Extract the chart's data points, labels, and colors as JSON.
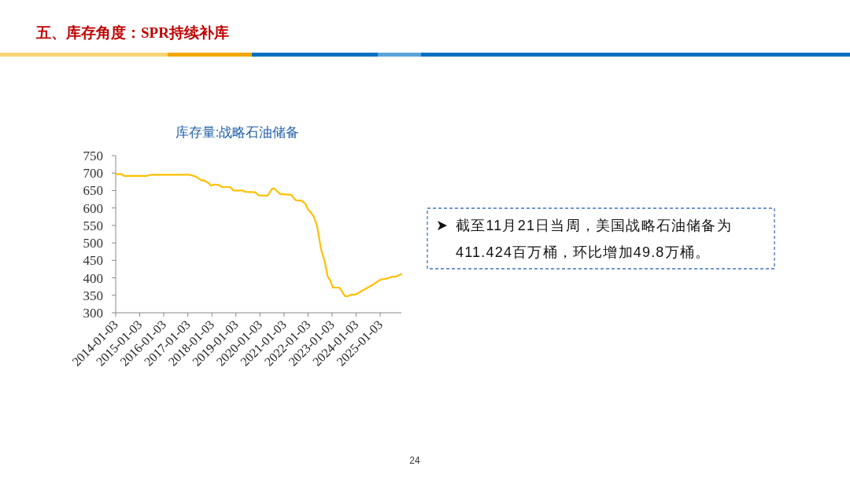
{
  "chart_data": {
    "type": "line",
    "title": "库存量:战略石油储备",
    "x": [
      "2014-01-03",
      "2014-04-01",
      "2014-05-10",
      "2015-04-20",
      "2015-07-01",
      "2017-02-01",
      "2017-05-01",
      "2017-07-20",
      "2017-09-01",
      "2017-11-25",
      "2017-12-15",
      "2018-02-05",
      "2018-04-20",
      "2018-06-05",
      "2018-10-05",
      "2018-12-01",
      "2019-04-20",
      "2019-05-25",
      "2019-10-20",
      "2019-12-15",
      "2020-04-25",
      "2020-07-10",
      "2020-08-05",
      "2020-11-05",
      "2021-04-20",
      "2021-07-01",
      "2021-09-25",
      "2021-11-25",
      "2022-01-01",
      "2022-02-05",
      "2022-04-01",
      "2022-05-20",
      "2022-07-20",
      "2022-09-15",
      "2022-10-28",
      "2022-12-05",
      "2023-01-15",
      "2023-04-25",
      "2023-07-15",
      "2023-08-25",
      "2023-10-22",
      "2023-12-25",
      "2024-05-10",
      "2024-09-10",
      "2025-01-10",
      "2025-04-20",
      "2025-06-25",
      "2025-09-05",
      "2025-11-21"
    ],
    "series": [
      {
        "color": "#ffc000",
        "values": [
          697,
          697,
          692,
          692,
          695,
          695,
          690,
          680,
          679,
          670,
          664,
          667,
          666,
          660,
          660,
          650,
          650,
          646,
          645,
          636,
          635,
          656,
          656,
          640,
          638,
          622,
          621,
          612,
          596,
          590,
          575,
          549,
          482,
          445,
          404,
          393,
          372,
          372,
          348,
          347,
          352,
          352,
          367,
          380,
          395,
          398,
          403,
          404,
          411
        ]
      }
    ],
    "xlim": [
      "2014-01-03",
      "2025-11-21"
    ],
    "xticks": [
      {
        "value": "2014-01-03",
        "label": "2014-01-03"
      },
      {
        "value": "2015-01-03",
        "label": "2015-01-03"
      },
      {
        "value": "2016-01-03",
        "label": "2016-01-03"
      },
      {
        "value": "2017-01-03",
        "label": "2017-01-03"
      },
      {
        "value": "2018-01-03",
        "label": "2018-01-03"
      },
      {
        "value": "2019-01-03",
        "label": "2019-01-03"
      },
      {
        "value": "2020-01-03",
        "label": "2020-01-03"
      },
      {
        "value": "2021-01-03",
        "label": "2021-01-03"
      },
      {
        "value": "2022-01-03",
        "label": "2022-01-03"
      },
      {
        "value": "2023-01-03",
        "label": "2023-01-03"
      },
      {
        "value": "2024-01-03",
        "label": "2024-01-03"
      },
      {
        "value": "2025-01-03",
        "label": "2025-01-03"
      }
    ],
    "ylim": [
      300,
      750
    ],
    "yticks": [
      300,
      350,
      400,
      450,
      500,
      550,
      600,
      650,
      700,
      750
    ],
    "grid": false,
    "marker": "none",
    "line_style": "solid",
    "annotations": [
      "五、库存角度：SPR持续补库",
      "截至11月21日当周，美国战略石油储备为411.424百万桶，环比增加49.8万桶。",
      "24"
    ]
  }
}
